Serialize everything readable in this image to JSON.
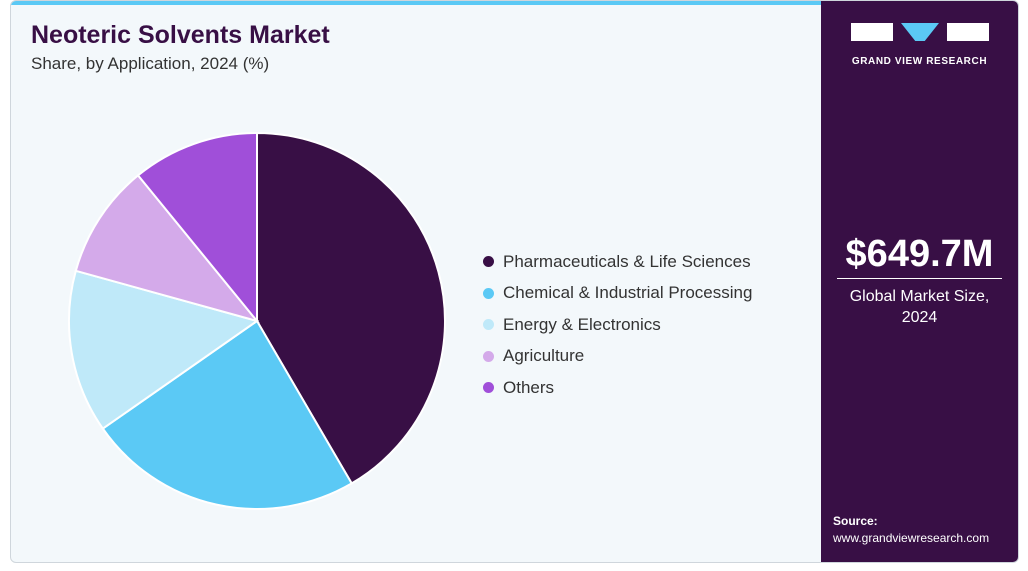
{
  "chart_data": {
    "type": "pie",
    "title": "Neoteric Solvents Market",
    "subtitle": "Share, by Application, 2024 (%)",
    "categories": [
      "Pharmaceuticals & Life Sciences",
      "Chemical & Industrial Processing",
      "Energy & Electronics",
      "Agriculture",
      "Others"
    ],
    "values": [
      41.6,
      23.7,
      14.0,
      9.8,
      10.9
    ],
    "colors": [
      "#380f45",
      "#5bc9f5",
      "#bfe9f9",
      "#d4aaea",
      "#a04fd9"
    ]
  },
  "sidebar": {
    "brand": "GRAND VIEW RESEARCH",
    "market_size": "$649.7M",
    "market_label": "Global Market Size, 2024",
    "source_label": "Source:",
    "source_url": "www.grandviewresearch.com"
  }
}
